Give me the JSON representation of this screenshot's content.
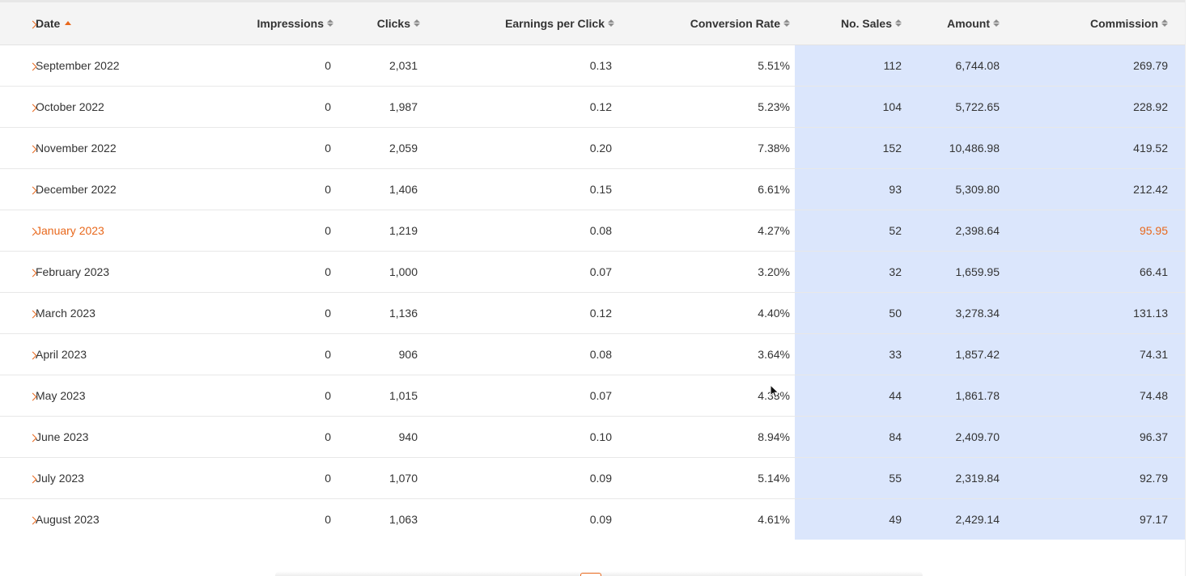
{
  "table": {
    "columns": {
      "date": "Date",
      "impressions": "Impressions",
      "clicks": "Clicks",
      "epc": "Earnings per Click",
      "conversion_rate": "Conversion Rate",
      "no_sales": "No. Sales",
      "amount": "Amount",
      "commission": "Commission"
    },
    "sort": {
      "column": "Date",
      "direction": "ascending"
    },
    "highlight_color": "#dbe6fc",
    "accent_color": "#e8681c",
    "rows": [
      {
        "date": "September 2022",
        "impressions": "0",
        "clicks": "2,031",
        "epc": "0.13",
        "conversion_rate": "5.51%",
        "no_sales": "112",
        "amount": "6,744.08",
        "commission": "269.79"
      },
      {
        "date": "October 2022",
        "impressions": "0",
        "clicks": "1,987",
        "epc": "0.12",
        "conversion_rate": "5.23%",
        "no_sales": "104",
        "amount": "5,722.65",
        "commission": "228.92"
      },
      {
        "date": "November 2022",
        "impressions": "0",
        "clicks": "2,059",
        "epc": "0.20",
        "conversion_rate": "7.38%",
        "no_sales": "152",
        "amount": "10,486.98",
        "commission": "419.52"
      },
      {
        "date": "December 2022",
        "impressions": "0",
        "clicks": "1,406",
        "epc": "0.15",
        "conversion_rate": "6.61%",
        "no_sales": "93",
        "amount": "5,309.80",
        "commission": "212.42"
      },
      {
        "date": "January 2023",
        "impressions": "0",
        "clicks": "1,219",
        "epc": "0.08",
        "conversion_rate": "4.27%",
        "no_sales": "52",
        "amount": "2,398.64",
        "commission": "95.95"
      },
      {
        "date": "February 2023",
        "impressions": "0",
        "clicks": "1,000",
        "epc": "0.07",
        "conversion_rate": "3.20%",
        "no_sales": "32",
        "amount": "1,659.95",
        "commission": "66.41"
      },
      {
        "date": "March 2023",
        "impressions": "0",
        "clicks": "1,136",
        "epc": "0.12",
        "conversion_rate": "4.40%",
        "no_sales": "50",
        "amount": "3,278.34",
        "commission": "131.13"
      },
      {
        "date": "April 2023",
        "impressions": "0",
        "clicks": "906",
        "epc": "0.08",
        "conversion_rate": "3.64%",
        "no_sales": "33",
        "amount": "1,857.42",
        "commission": "74.31"
      },
      {
        "date": "May 2023",
        "impressions": "0",
        "clicks": "1,015",
        "epc": "0.07",
        "conversion_rate": "4.33%",
        "no_sales": "44",
        "amount": "1,861.78",
        "commission": "74.48"
      },
      {
        "date": "June 2023",
        "impressions": "0",
        "clicks": "940",
        "epc": "0.10",
        "conversion_rate": "8.94%",
        "no_sales": "84",
        "amount": "2,409.70",
        "commission": "96.37"
      },
      {
        "date": "July 2023",
        "impressions": "0",
        "clicks": "1,070",
        "epc": "0.09",
        "conversion_rate": "5.14%",
        "no_sales": "55",
        "amount": "2,319.84",
        "commission": "92.79"
      },
      {
        "date": "August 2023",
        "impressions": "0",
        "clicks": "1,063",
        "epc": "0.09",
        "conversion_rate": "4.61%",
        "no_sales": "49",
        "amount": "2,429.14",
        "commission": "97.17"
      }
    ]
  }
}
